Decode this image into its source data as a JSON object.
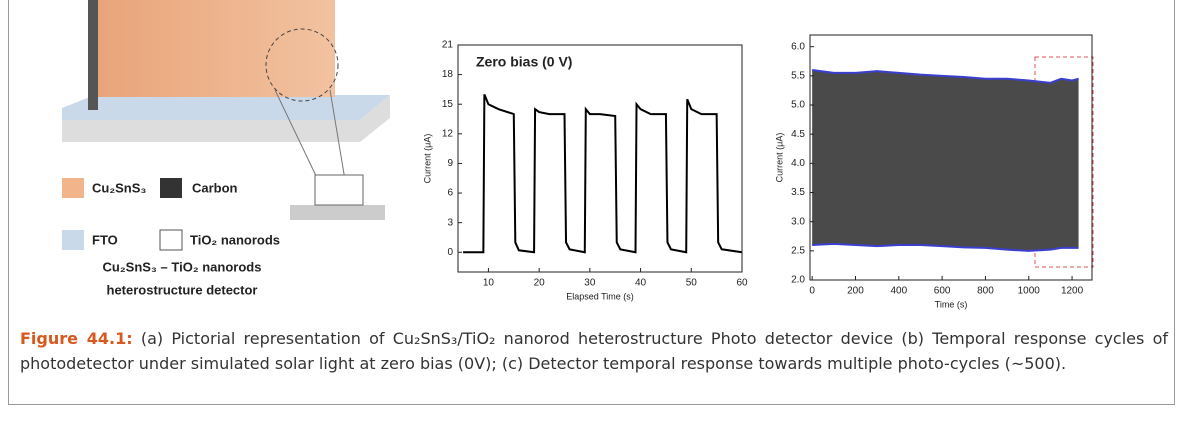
{
  "figure": {
    "legend": [
      "Cu₂SnS₃",
      "Carbon",
      "FTO",
      "TiO₂ nanorods"
    ],
    "device_title": [
      "Cu₂SnS₃ – TiO₂ nanorods",
      "heterostructure detector"
    ]
  },
  "caption": {
    "label": "Figure 44.1:",
    "text": "(a) Pictorial representation of Cu₂SnS₃/TiO₂ nanorod heterostructure Photo detector device (b) Temporal response cycles of photodetector under simulated solar light at zero bias (0V); (c) Detector temporal response towards multiple photo-cycles (~500)."
  },
  "chart_data": [
    {
      "type": "line",
      "annotation": "Zero bias (0 V)",
      "x_label": "Elapsed Time (s)",
      "y_label": "Current (μA)",
      "x": [
        5,
        9,
        9.2,
        10,
        12,
        15,
        15.3,
        16,
        19,
        19.2,
        20,
        22,
        25,
        25.3,
        26,
        29,
        29.2,
        30,
        32,
        35,
        35.3,
        36,
        39,
        39.2,
        40,
        42,
        45,
        45.3,
        46,
        49,
        49.2,
        50,
        52,
        55,
        55.3,
        56,
        60
      ],
      "series": [
        {
          "color": "#000000",
          "values": [
            0,
            0,
            16,
            15,
            14.5,
            14,
            1,
            0.2,
            0,
            14.5,
            14.2,
            14,
            14,
            1,
            0.3,
            0,
            14.5,
            14,
            14,
            13.8,
            1,
            0.3,
            0,
            15,
            14.5,
            14,
            14,
            1,
            0.3,
            0,
            15.5,
            14.5,
            14,
            14,
            1,
            0.3,
            0
          ]
        }
      ],
      "xlim": [
        4,
        60
      ],
      "xticks": [
        10,
        20,
        30,
        40,
        50,
        60
      ],
      "ylim": [
        -2,
        21
      ],
      "yticks": [
        0,
        3,
        6,
        9,
        12,
        15,
        18,
        21
      ]
    },
    {
      "type": "line",
      "x_label": "Time (s)",
      "y_label": "Current (μA)",
      "band_color": "#4a4a4a",
      "x": [
        0,
        100,
        200,
        300,
        400,
        500,
        600,
        700,
        800,
        900,
        1000,
        1100,
        1150,
        1200,
        1230
      ],
      "series": [
        {
          "color": "#3b3fd0",
          "values": [
            5.6,
            5.55,
            5.55,
            5.58,
            5.55,
            5.52,
            5.5,
            5.48,
            5.45,
            5.45,
            5.42,
            5.38,
            5.45,
            5.42,
            5.45
          ]
        },
        {
          "color": "#3b3fd0",
          "values": [
            2.6,
            2.62,
            2.6,
            2.58,
            2.6,
            2.6,
            2.58,
            2.56,
            2.55,
            2.52,
            2.5,
            2.52,
            2.55,
            2.55,
            2.55
          ]
        }
      ],
      "xlim": [
        -10,
        1292
      ],
      "xticks": [
        0,
        200,
        400,
        600,
        800,
        1000,
        1200
      ],
      "ylim": [
        2.0,
        6.2
      ],
      "yticks": [
        {
          "value": 2,
          "label": "2.0"
        },
        2.5,
        {
          "value": 3,
          "label": "3.0"
        },
        3.5,
        {
          "value": 4,
          "label": "4.0"
        },
        4.5,
        {
          "value": 5,
          "label": "5.0"
        },
        5.5,
        {
          "value": 6,
          "label": "6.0"
        }
      ]
    }
  ]
}
